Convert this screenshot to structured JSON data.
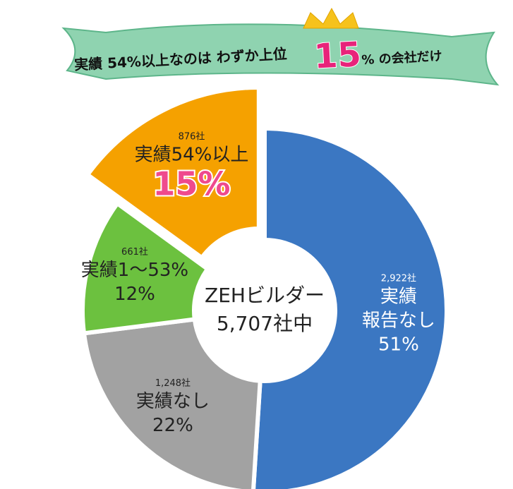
{
  "banner": {
    "lead": "実績 54%以上なのは わずか上位",
    "highlight": "15",
    "tail": "% の会社だけ"
  },
  "chart_data": {
    "type": "donut",
    "categories": [
      [
        "実績",
        "報告なし"
      ],
      [
        "実績なし"
      ],
      [
        "実績1〜53%"
      ],
      [
        "実績54%以上"
      ]
    ],
    "values": [
      51,
      22,
      12,
      15
    ],
    "value_labels": [
      "51%",
      "22%",
      "12%",
      "15%"
    ],
    "counts": [
      2922,
      1248,
      661,
      876
    ],
    "count_labels": [
      "2,922社",
      "1,248社",
      "661社",
      "876社"
    ],
    "colors": [
      "#3b77c2",
      "#a2a2a2",
      "#6cc13f",
      "#f5a100"
    ],
    "center_label": [
      "ZEHビルダー",
      "5,707社中"
    ],
    "highlight_index": 3
  }
}
